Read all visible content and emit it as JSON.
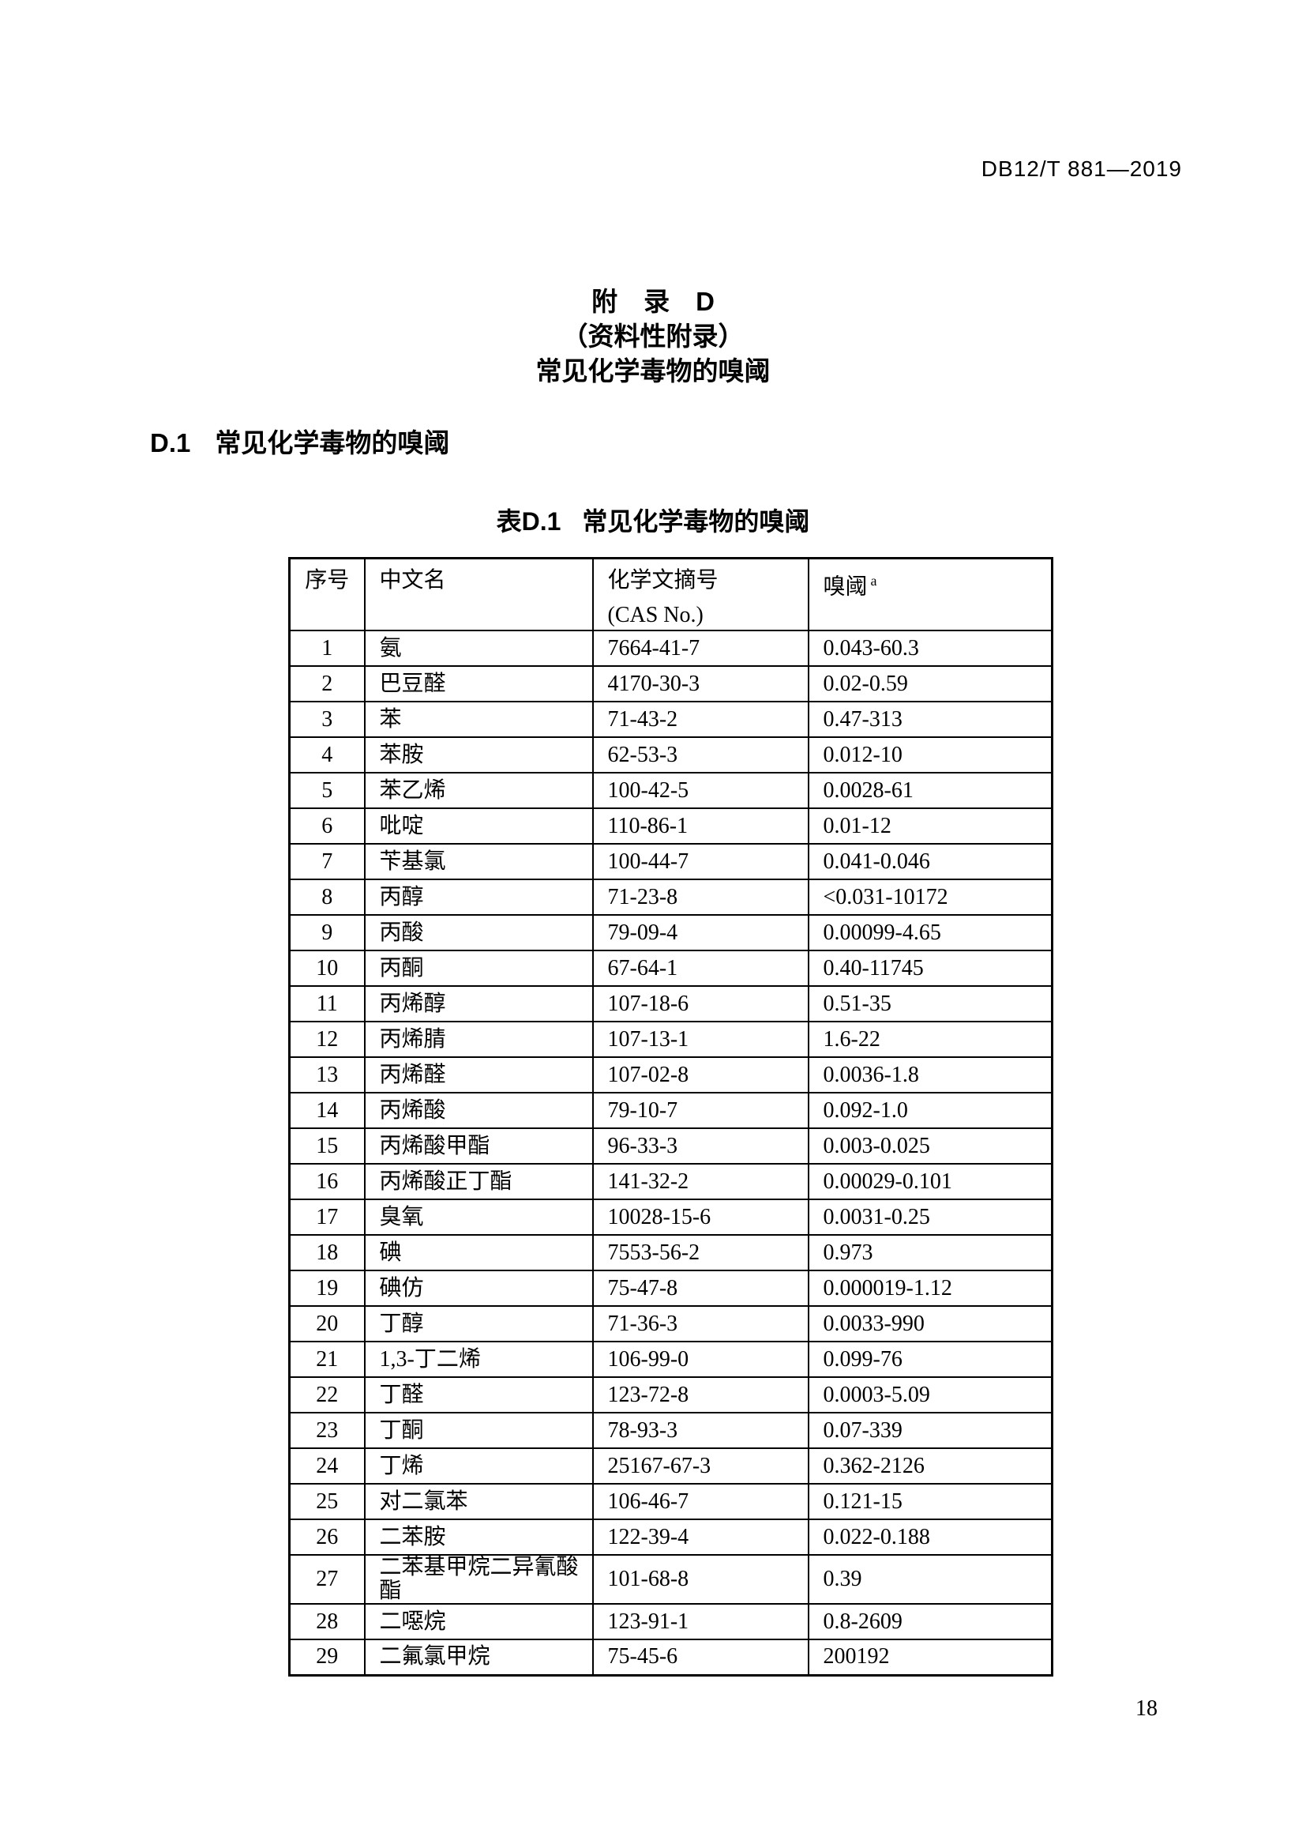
{
  "colors": {
    "text": "#000000",
    "background": "#ffffff"
  },
  "header": {
    "standard_code": "DB12/T 881—2019"
  },
  "appendix": {
    "title_line1": "附　录　D",
    "title_line2": "（资料性附录）",
    "title_line3": "常见化学毒物的嗅阈",
    "section_label": "D.1",
    "section_title": "常见化学毒物的嗅阈",
    "caption_label": "表D.1",
    "caption_title": "常见化学毒物的嗅阈"
  },
  "table": {
    "headers": {
      "col1": "序号",
      "col2": "中文名",
      "col3_line1": "化学文摘号",
      "col3_line2": "(CAS No.)",
      "col4": "嗅阈",
      "col4_superscript": "a"
    },
    "rows": [
      {
        "no": "1",
        "name": "氨",
        "cas": "7664-41-7",
        "threshold": "0.043-60.3"
      },
      {
        "no": "2",
        "name": "巴豆醛",
        "cas": "4170-30-3",
        "threshold": "0.02-0.59"
      },
      {
        "no": "3",
        "name": "苯",
        "cas": "71-43-2",
        "threshold": "0.47-313"
      },
      {
        "no": "4",
        "name": "苯胺",
        "cas": "62-53-3",
        "threshold": "0.012-10"
      },
      {
        "no": "5",
        "name": "苯乙烯",
        "cas": "100-42-5",
        "threshold": "0.0028-61"
      },
      {
        "no": "6",
        "name": "吡啶",
        "cas": "110-86-1",
        "threshold": "0.01-12"
      },
      {
        "no": "7",
        "name": "苄基氯",
        "cas": "100-44-7",
        "threshold": "0.041-0.046"
      },
      {
        "no": "8",
        "name": "丙醇",
        "cas": "71-23-8",
        "threshold": "<0.031-10172"
      },
      {
        "no": "9",
        "name": "丙酸",
        "cas": "79-09-4",
        "threshold": "0.00099-4.65"
      },
      {
        "no": "10",
        "name": "丙酮",
        "cas": "67-64-1",
        "threshold": "0.40-11745"
      },
      {
        "no": "11",
        "name": "丙烯醇",
        "cas": "107-18-6",
        "threshold": "0.51-35"
      },
      {
        "no": "12",
        "name": "丙烯腈",
        "cas": "107-13-1",
        "threshold": "1.6-22"
      },
      {
        "no": "13",
        "name": "丙烯醛",
        "cas": "107-02-8",
        "threshold": "0.0036-1.8"
      },
      {
        "no": "14",
        "name": "丙烯酸",
        "cas": "79-10-7",
        "threshold": "0.092-1.0"
      },
      {
        "no": "15",
        "name": "丙烯酸甲酯",
        "cas": "96-33-3",
        "threshold": "0.003-0.025"
      },
      {
        "no": "16",
        "name": "丙烯酸正丁酯",
        "cas": "141-32-2",
        "threshold": "0.00029-0.101"
      },
      {
        "no": "17",
        "name": "臭氧",
        "cas": "10028-15-6",
        "threshold": "0.0031-0.25"
      },
      {
        "no": "18",
        "name": "碘",
        "cas": "7553-56-2",
        "threshold": "0.973"
      },
      {
        "no": "19",
        "name": "碘仿",
        "cas": "75-47-8",
        "threshold": "0.000019-1.12"
      },
      {
        "no": "20",
        "name": "丁醇",
        "cas": "71-36-3",
        "threshold": "0.0033-990"
      },
      {
        "no": "21",
        "name": "1,3-丁二烯",
        "cas": "106-99-0",
        "threshold": "0.099-76"
      },
      {
        "no": "22",
        "name": "丁醛",
        "cas": "123-72-8",
        "threshold": "0.0003-5.09"
      },
      {
        "no": "23",
        "name": "丁酮",
        "cas": "78-93-3",
        "threshold": "0.07-339"
      },
      {
        "no": "24",
        "name": "丁烯",
        "cas": "25167-67-3",
        "threshold": "0.362-2126"
      },
      {
        "no": "25",
        "name": "对二氯苯",
        "cas": "106-46-7",
        "threshold": "0.121-15"
      },
      {
        "no": "26",
        "name": "二苯胺",
        "cas": "122-39-4",
        "threshold": "0.022-0.188"
      },
      {
        "no": "27",
        "name": "二苯基甲烷二异氰酸酯",
        "cas": "101-68-8",
        "threshold": "0.39"
      },
      {
        "no": "28",
        "name": "二噁烷",
        "cas": "123-91-1",
        "threshold": "0.8-2609"
      },
      {
        "no": "29",
        "name": "二氟氯甲烷",
        "cas": "75-45-6",
        "threshold": "200192"
      }
    ]
  },
  "footer": {
    "page_number": "18"
  }
}
